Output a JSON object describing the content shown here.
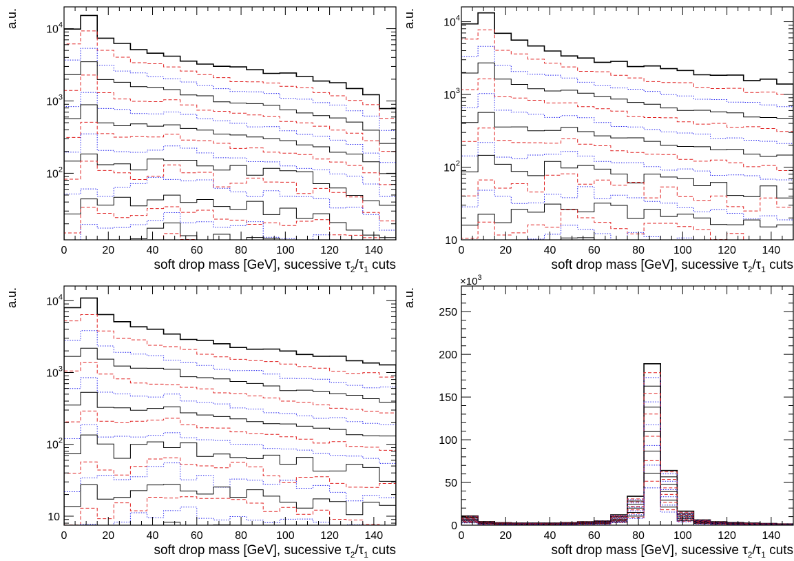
{
  "chart_data": [
    {
      "type": "histogram",
      "yscale": "log",
      "ylabel": "a.u.",
      "xlabel_prefix": "soft drop mass [GeV], sucessive ",
      "xlabel_tau": "τ",
      "xlabel_sub2": "2",
      "xlabel_slash": "/",
      "xlabel_sub1": "1",
      "xlabel_suffix": " cuts",
      "xlim": [
        0,
        150
      ],
      "ylim": [
        12,
        20000
      ],
      "xticks": [
        "0",
        "20",
        "40",
        "60",
        "80",
        "100",
        "120",
        "140"
      ],
      "yticks": [
        {
          "value": 100,
          "base": "10",
          "exp": "2"
        },
        {
          "value": 1000,
          "base": "10",
          "exp": "3"
        },
        {
          "value": 10000,
          "base": "10",
          "exp": "4"
        }
      ],
      "bins": [
        0,
        7.5,
        15,
        22.5,
        30,
        37.5,
        45,
        52.5,
        60,
        67.5,
        75,
        82.5,
        90,
        97.5,
        105,
        112.5,
        120,
        127.5,
        135,
        142.5,
        150
      ],
      "envelope": [
        10500,
        14500,
        7800,
        6200,
        5200,
        4600,
        4100,
        3700,
        3300,
        3000,
        2800,
        2600,
        2500,
        2300,
        2100,
        1900,
        1700,
        1500,
        1200,
        800
      ],
      "n_cuts": 18
    },
    {
      "type": "histogram",
      "yscale": "log",
      "ylabel": "a.u.",
      "xlabel_prefix": "soft drop mass [GeV], sucessive ",
      "xlabel_tau": "τ",
      "xlabel_sub2": "2",
      "xlabel_slash": "/",
      "xlabel_sub1": "1",
      "xlabel_suffix": " cuts",
      "xlim": [
        0,
        150
      ],
      "ylim": [
        10,
        16000
      ],
      "xticks": [
        "0",
        "20",
        "40",
        "60",
        "80",
        "100",
        "120",
        "140"
      ],
      "yticks": [
        {
          "value": 10,
          "base": "10",
          "exp": ""
        },
        {
          "value": 100,
          "base": "10",
          "exp": "2"
        },
        {
          "value": 1000,
          "base": "10",
          "exp": "3"
        },
        {
          "value": 10000,
          "base": "10",
          "exp": "4"
        }
      ],
      "bins": [
        0,
        7.5,
        15,
        22.5,
        30,
        37.5,
        45,
        52.5,
        60,
        67.5,
        75,
        82.5,
        90,
        97.5,
        105,
        112.5,
        120,
        127.5,
        135,
        142.5,
        150
      ],
      "envelope": [
        9500,
        12500,
        6800,
        5400,
        4600,
        4000,
        3600,
        3200,
        2900,
        2700,
        2500,
        2350,
        2200,
        2050,
        1950,
        1850,
        1750,
        1650,
        1550,
        1450
      ],
      "n_cuts": 18
    },
    {
      "type": "histogram",
      "yscale": "log",
      "ylabel": "a.u.",
      "xlabel_prefix": "soft drop mass [GeV], sucessive ",
      "xlabel_tau": "τ",
      "xlabel_sub2": "2",
      "xlabel_slash": "/",
      "xlabel_sub1": "1",
      "xlabel_suffix": " cuts",
      "xlim": [
        0,
        150
      ],
      "ylim": [
        7.5,
        16000
      ],
      "xticks": [
        "0",
        "20",
        "40",
        "60",
        "80",
        "100",
        "120",
        "140"
      ],
      "yticks": [
        {
          "value": 10,
          "base": "10",
          "exp": ""
        },
        {
          "value": 100,
          "base": "10",
          "exp": "2"
        },
        {
          "value": 1000,
          "base": "10",
          "exp": "3"
        },
        {
          "value": 10000,
          "base": "10",
          "exp": "4"
        }
      ],
      "bins": [
        0,
        7.5,
        15,
        22.5,
        30,
        37.5,
        45,
        52.5,
        60,
        67.5,
        75,
        82.5,
        90,
        97.5,
        105,
        112.5,
        120,
        127.5,
        135,
        142.5,
        150
      ],
      "envelope": [
        8500,
        10500,
        6300,
        4900,
        4300,
        3800,
        3400,
        3000,
        2700,
        2500,
        2350,
        2200,
        2050,
        1900,
        1800,
        1700,
        1600,
        1500,
        1400,
        1300
      ],
      "n_cuts": 18
    },
    {
      "type": "histogram",
      "yscale": "linear",
      "ylabel": "a.u.",
      "multiplier": "×10",
      "multiplier_exp": "3",
      "xlabel_prefix": "soft drop mass [GeV], sucessive ",
      "xlabel_tau": "τ",
      "xlabel_sub2": "2",
      "xlabel_slash": "/",
      "xlabel_sub1": "1",
      "xlabel_suffix": " cuts",
      "xlim": [
        0,
        150
      ],
      "ylim": [
        0,
        280
      ],
      "xticks": [
        "0",
        "20",
        "40",
        "60",
        "80",
        "100",
        "120",
        "140"
      ],
      "yticks": [
        {
          "value": 0,
          "label": "0"
        },
        {
          "value": 50,
          "label": "50"
        },
        {
          "value": 100,
          "label": "100"
        },
        {
          "value": 150,
          "label": "150"
        },
        {
          "value": 200,
          "label": "200"
        },
        {
          "value": 250,
          "label": "250"
        }
      ],
      "bins": [
        0,
        7.5,
        15,
        22.5,
        30,
        37.5,
        45,
        52.5,
        60,
        67.5,
        75,
        82.5,
        90,
        97.5,
        105,
        112.5,
        120,
        127.5,
        135,
        142.5,
        150
      ],
      "envelope": [
        11,
        4,
        3,
        2.5,
        2.5,
        2.5,
        3,
        4,
        5,
        12,
        33,
        186,
        65,
        16,
        6,
        4,
        3,
        2.5,
        2,
        1.5
      ],
      "n_cuts": 18
    }
  ],
  "colors": {
    "solid": "#000000",
    "dashed": "#e02020",
    "dotted": "#2020ee",
    "frame": "#000000",
    "background": "#ffffff"
  }
}
